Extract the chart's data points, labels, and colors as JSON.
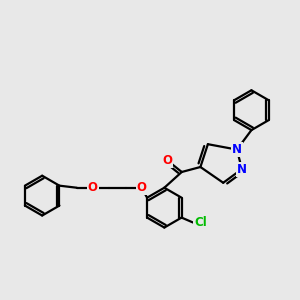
{
  "background_color": "#e8e8e8",
  "atom_colors": {
    "O": "#ff0000",
    "N": "#0000ff",
    "Cl": "#00bb00",
    "C": "#000000"
  },
  "bond_color": "#000000",
  "bond_width": 1.6,
  "font_size_atom": 8.5
}
